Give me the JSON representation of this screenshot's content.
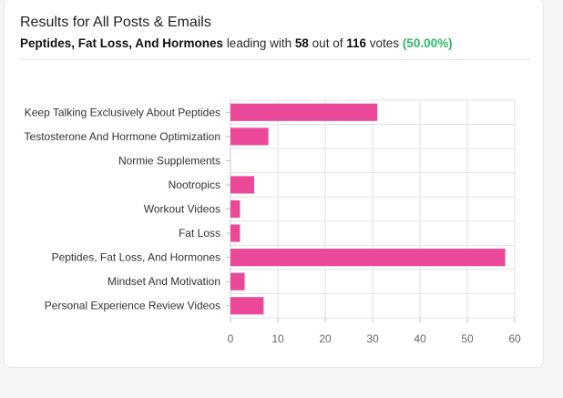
{
  "header": {
    "title": "Results for All Posts & Emails",
    "leader": "Peptides, Fat Loss, And Hormones",
    "leading_with": "leading with",
    "votes_leader": "58",
    "out_of": "out of",
    "votes_total": "116",
    "votes_word": "votes",
    "percent": "(50.00%)"
  },
  "colors": {
    "bar": "#ec4899",
    "percent": "#2fb86a",
    "grid": "#e2e2e2"
  },
  "chart_data": {
    "type": "bar",
    "orientation": "horizontal",
    "categories": [
      "Keep Talking Exclusively About Peptides",
      "Testosterone And Hormone Optimization",
      "Normie Supplements",
      "Nootropics",
      "Workout Videos",
      "Fat Loss",
      "Peptides, Fat Loss, And Hormones",
      "Mindset And Motivation",
      "Personal Experience Review Videos"
    ],
    "values": [
      31,
      8,
      0,
      5,
      2,
      2,
      58,
      3,
      7
    ],
    "xlim": [
      0,
      60
    ],
    "xticks": [
      0,
      10,
      20,
      30,
      40,
      50,
      60
    ],
    "grid": true,
    "title": "",
    "xlabel": "",
    "ylabel": ""
  }
}
